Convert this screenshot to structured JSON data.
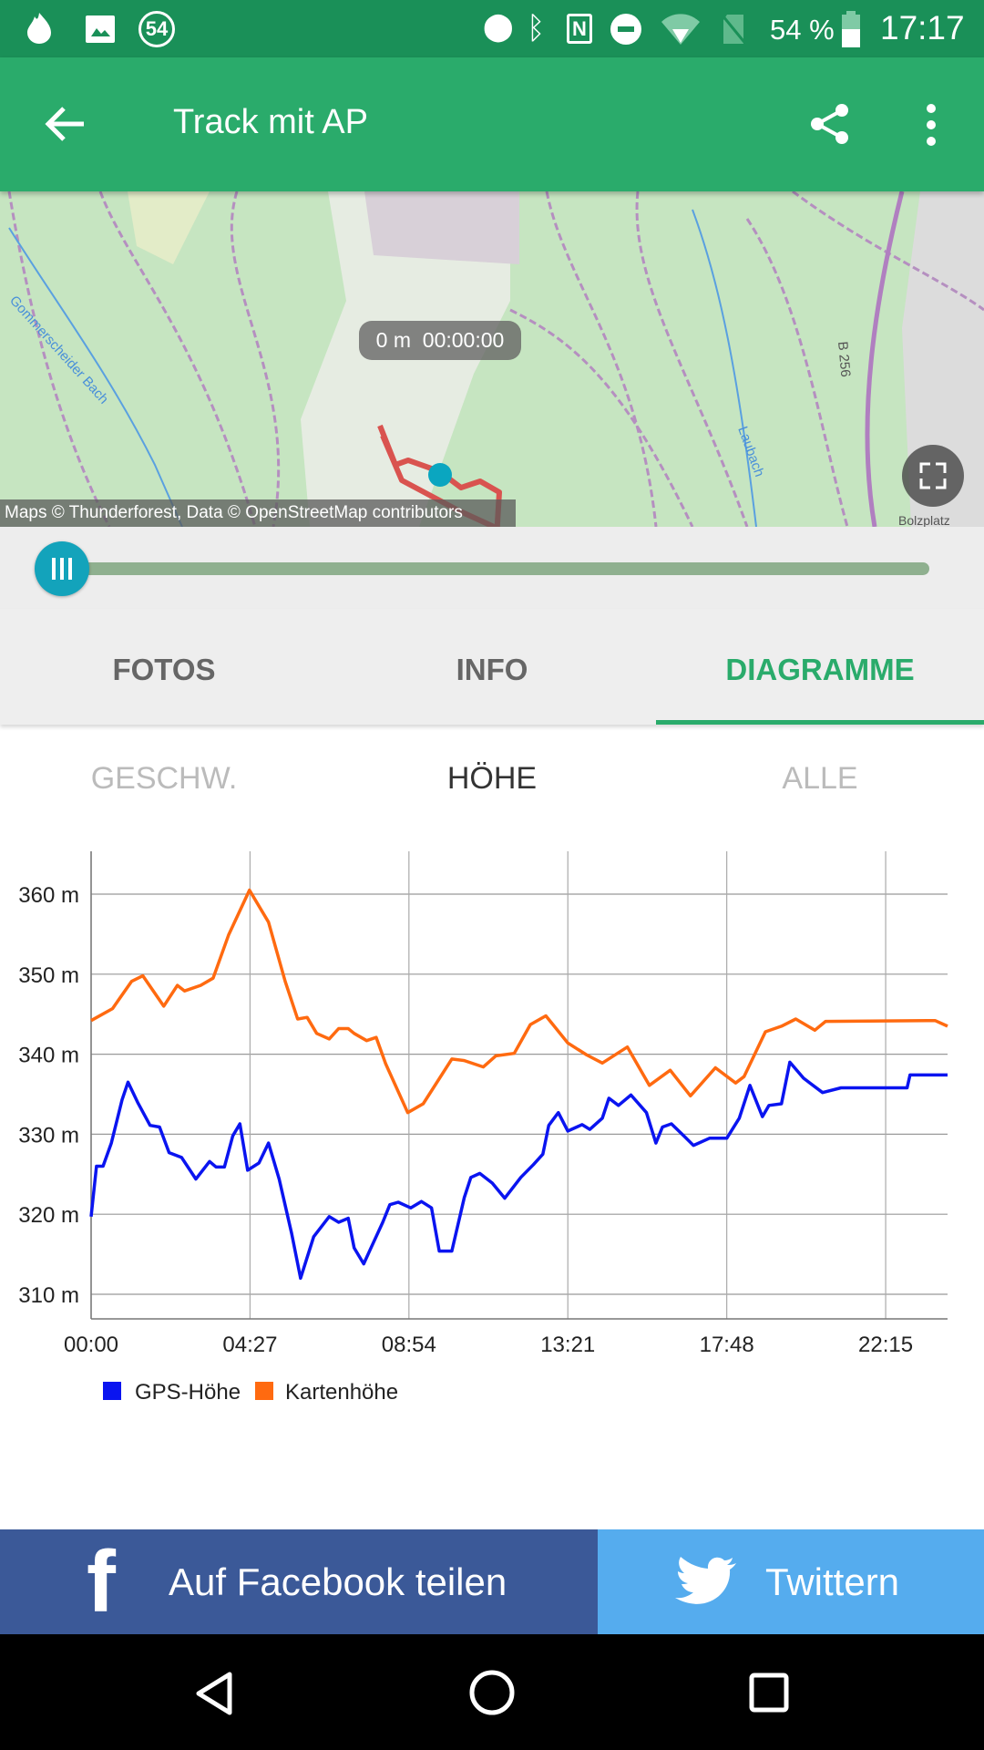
{
  "status_bar": {
    "notification_count": "54",
    "battery": "54 %",
    "time": "17:17"
  },
  "app_bar": {
    "title": "Track mit AP"
  },
  "map": {
    "position_label": "0 m  00:00:00",
    "attribution": "Maps © Thunderforest, Data © OpenStreetMap contributors",
    "labels": [
      "Gommerscheider Bach",
      "Laubach",
      "B 256",
      "Bolzplatz"
    ],
    "track_color": "#d9534f",
    "marker_color": "#0aa6c0"
  },
  "slider": {
    "progress": 0
  },
  "tabs": [
    {
      "label": "FOTOS"
    },
    {
      "label": "INFO"
    },
    {
      "label": "DIAGRAMME",
      "active": true
    }
  ],
  "subtabs": [
    {
      "label": "GESCHW."
    },
    {
      "label": "HÖHE",
      "active": true
    },
    {
      "label": "ALLE"
    }
  ],
  "chart_data": {
    "type": "line",
    "xlim": [
      "00:00",
      "23:59"
    ],
    "ylim": [
      307,
      365
    ],
    "x_ticks": [
      "00:00",
      "04:27",
      "08:54",
      "13:21",
      "17:48",
      "22:15"
    ],
    "y_ticks": [
      "310 m",
      "320 m",
      "330 m",
      "340 m",
      "350 m",
      "360 m"
    ],
    "y_tick_values": [
      310,
      320,
      330,
      340,
      350,
      360
    ],
    "grid": true,
    "legend": "bottom-left",
    "series": [
      {
        "name": "GPS-Höhe",
        "color": "#0a14f0",
        "x": [
          "00:00",
          "00:09",
          "00:20",
          "00:34",
          "00:52",
          "01:02",
          "01:18",
          "01:39",
          "01:55",
          "02:11",
          "02:32",
          "02:56",
          "03:19",
          "03:30",
          "03:44",
          "03:58",
          "04:10",
          "04:23",
          "04:42",
          "04:58",
          "05:16",
          "05:37",
          "05:52",
          "06:14",
          "06:40",
          "06:56",
          "07:12",
          "07:22",
          "07:38",
          "07:49",
          "08:10",
          "08:22",
          "08:36",
          "08:57",
          "09:15",
          "09:32",
          "09:45",
          "10:06",
          "10:27",
          "10:38",
          "10:53",
          "11:14",
          "11:35",
          "12:02",
          "12:23",
          "12:39",
          "12:49",
          "13:05",
          "13:21",
          "13:45",
          "13:58",
          "14:19",
          "14:30",
          "14:46",
          "15:07",
          "15:33",
          "15:49",
          "16:00",
          "16:15",
          "16:36",
          "16:52",
          "17:19",
          "17:48",
          "18:09",
          "18:27",
          "18:48",
          "18:59",
          "19:20",
          "19:34",
          "19:57",
          "20:29",
          "21:00",
          "22:51",
          "22:56",
          "23:59"
        ],
        "y": [
          319.7,
          326.0,
          326.0,
          328.9,
          334.3,
          336.5,
          334.0,
          331.1,
          330.9,
          327.7,
          327.1,
          324.4,
          326.6,
          325.9,
          325.9,
          329.8,
          331.3,
          325.5,
          326.4,
          328.9,
          324.4,
          317.6,
          312.0,
          317.2,
          319.7,
          319.0,
          319.5,
          315.8,
          313.8,
          315.6,
          319.0,
          321.2,
          321.5,
          320.8,
          321.6,
          320.8,
          315.4,
          315.4,
          322.1,
          324.6,
          325.1,
          323.9,
          322.0,
          324.6,
          326.2,
          327.5,
          331.1,
          332.7,
          330.4,
          331.2,
          330.6,
          332.0,
          334.5,
          333.6,
          334.9,
          332.7,
          328.9,
          330.9,
          331.3,
          329.8,
          328.6,
          329.5,
          329.5,
          332.0,
          336.1,
          332.2,
          333.6,
          333.8,
          339.0,
          337.0,
          335.2,
          335.8,
          335.8,
          337.4,
          337.4
        ]
      },
      {
        "name": "Kartenhöhe",
        "color": "#ff6a10",
        "x": [
          "00:00",
          "00:36",
          "01:08",
          "01:27",
          "02:02",
          "02:25",
          "02:37",
          "03:04",
          "03:25",
          "03:51",
          "04:26",
          "04:58",
          "05:26",
          "05:47",
          "06:03",
          "06:19",
          "06:40",
          "06:56",
          "07:12",
          "07:22",
          "07:43",
          "07:59",
          "08:15",
          "08:52",
          "09:18",
          "10:06",
          "10:27",
          "10:59",
          "11:20",
          "11:51",
          "12:18",
          "12:44",
          "13:21",
          "13:53",
          "14:19",
          "15:01",
          "15:38",
          "16:13",
          "16:47",
          "17:29",
          "18:03",
          "18:17",
          "18:53",
          "19:20",
          "19:44",
          "20:16",
          "20:34",
          "23:38",
          "23:59"
        ],
        "y": [
          344.2,
          345.7,
          349.1,
          349.8,
          346.0,
          348.6,
          347.9,
          348.6,
          349.5,
          354.9,
          360.5,
          356.5,
          349.1,
          344.4,
          344.6,
          342.6,
          341.9,
          343.2,
          343.2,
          342.6,
          341.7,
          342.1,
          338.8,
          332.7,
          333.8,
          339.4,
          339.2,
          338.4,
          339.8,
          340.1,
          343.7,
          344.8,
          341.4,
          339.9,
          338.9,
          340.9,
          336.1,
          338.0,
          334.8,
          338.3,
          336.4,
          337.2,
          342.8,
          343.5,
          344.4,
          343.0,
          344.1,
          344.2,
          343.5
        ]
      }
    ]
  },
  "share": {
    "facebook_label": "Auf Facebook teilen",
    "twitter_label": "Twittern",
    "facebook_color": "#3b5998",
    "twitter_color": "#55acee"
  }
}
